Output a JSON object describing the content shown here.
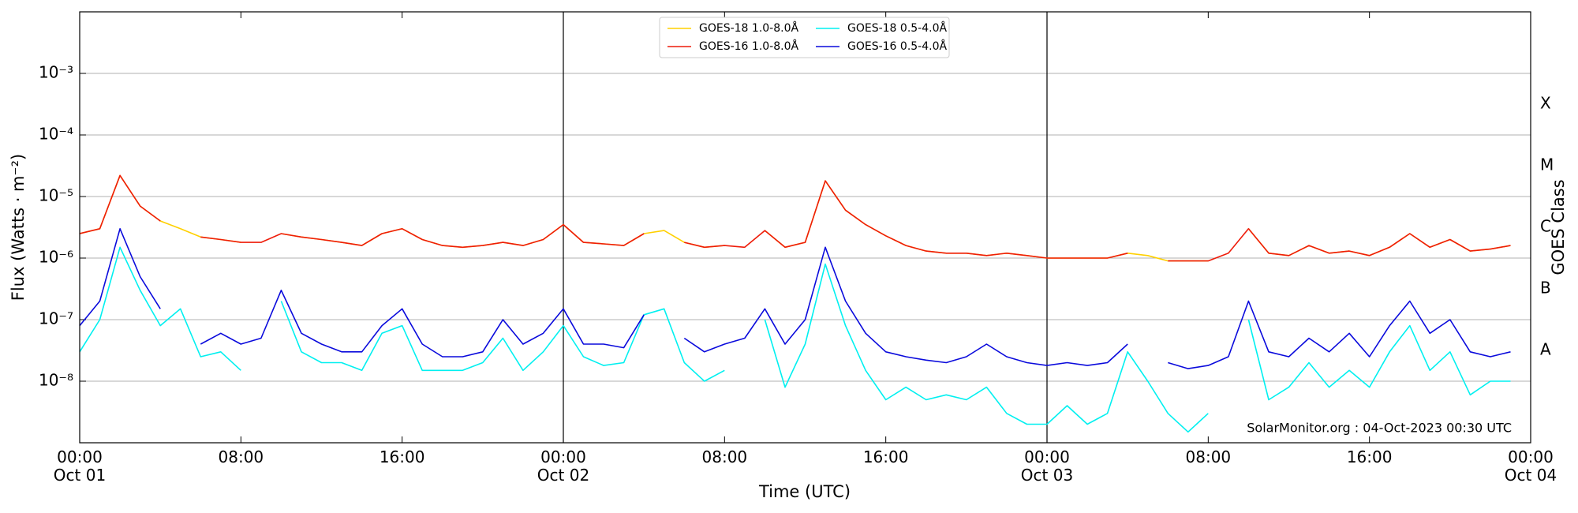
{
  "chart_data": {
    "type": "line",
    "xlabel": "Time (UTC)",
    "ylabel": "Flux (Watts · m⁻²)",
    "y2label": "GOES Class",
    "annotation": "SolarMonitor.org : 04-Oct-2023 00:30 UTC",
    "log_y": true,
    "grid": true,
    "legend": "upper center",
    "xlim": [
      0,
      72
    ],
    "xticks": [
      {
        "value": 0,
        "label": "00:00\nOct 01"
      },
      {
        "value": 8,
        "label": "08:00"
      },
      {
        "value": 16,
        "label": "16:00"
      },
      {
        "value": 24,
        "label": "00:00\nOct 02"
      },
      {
        "value": 32,
        "label": "08:00"
      },
      {
        "value": 40,
        "label": "16:00"
      },
      {
        "value": 48,
        "label": "00:00\nOct 03"
      },
      {
        "value": 56,
        "label": "08:00"
      },
      {
        "value": 64,
        "label": "16:00"
      },
      {
        "value": 72,
        "label": "00:00\nOct 04"
      }
    ],
    "vlines": [
      24,
      48
    ],
    "ylim": [
      1e-09,
      0.01
    ],
    "yticks": [
      {
        "value": 1e-08,
        "label": "10⁻⁸"
      },
      {
        "value": 1e-07,
        "label": "10⁻⁷"
      },
      {
        "value": 1e-06,
        "label": "10⁻⁶"
      },
      {
        "value": 1e-05,
        "label": "10⁻⁵"
      },
      {
        "value": 0.0001,
        "label": "10⁻⁴"
      },
      {
        "value": 0.001,
        "label": "10⁻³"
      }
    ],
    "y2lim": [
      1e-09,
      0.01
    ],
    "y2ticks": [
      {
        "value": 3.16e-08,
        "label": "A"
      },
      {
        "value": 3.16e-07,
        "label": "B"
      },
      {
        "value": 3.16e-06,
        "label": "C"
      },
      {
        "value": 3.16e-05,
        "label": "M"
      },
      {
        "value": 0.000316,
        "label": "X"
      }
    ],
    "x": [
      0,
      1,
      2,
      3,
      4,
      5,
      6,
      7,
      8,
      9,
      10,
      11,
      12,
      13,
      14,
      15,
      16,
      17,
      18,
      19,
      20,
      21,
      22,
      23,
      24,
      25,
      26,
      27,
      28,
      29,
      30,
      31,
      32,
      33,
      34,
      35,
      36,
      37,
      38,
      39,
      40,
      41,
      42,
      43,
      44,
      45,
      46,
      47,
      48,
      49,
      50,
      51,
      52,
      53,
      54,
      55,
      56,
      57,
      58,
      59,
      60,
      61,
      62,
      63,
      64,
      65,
      66,
      67,
      68,
      69,
      70,
      71,
      72
    ],
    "series": [
      {
        "name": "GOES-18 1.0-8.0Å",
        "color": "#ffd000",
        "values": [
          2.5e-06,
          3e-06,
          2.2e-05,
          7e-06,
          4e-06,
          3e-06,
          2.2e-06,
          2e-06,
          1.8e-06,
          null,
          2.5e-06,
          2.2e-06,
          2e-06,
          1.8e-06,
          1.6e-06,
          2.5e-06,
          3e-06,
          2e-06,
          1.6e-06,
          1.5e-06,
          1.6e-06,
          1.8e-06,
          1.6e-06,
          2e-06,
          3.5e-06,
          1.8e-06,
          1.7e-06,
          1.6e-06,
          2.5e-06,
          2.8e-06,
          1.8e-06,
          1.5e-06,
          1.6e-06,
          null,
          2.8e-06,
          1.5e-06,
          1.8e-06,
          1.8e-05,
          6e-06,
          3.5e-06,
          2.3e-06,
          1.6e-06,
          1.3e-06,
          1.2e-06,
          1.2e-06,
          1.1e-06,
          1.2e-06,
          1.1e-06,
          1e-06,
          1e-06,
          1e-06,
          1e-06,
          1.2e-06,
          1.1e-06,
          9e-07,
          9e-07,
          9e-07,
          null,
          3e-06,
          1.2e-06,
          1.1e-06,
          1.6e-06,
          1.2e-06,
          1.3e-06,
          1.1e-06,
          1.5e-06,
          2.5e-06,
          1.5e-06,
          2e-06,
          1.3e-06,
          1.4e-06,
          1.6e-06,
          null
        ]
      },
      {
        "name": "GOES-16 1.0-8.0Å",
        "color": "#ee1c0a",
        "values": [
          2.5e-06,
          3e-06,
          2.2e-05,
          7e-06,
          4e-06,
          null,
          2.2e-06,
          2e-06,
          1.8e-06,
          1.8e-06,
          2.5e-06,
          2.2e-06,
          2e-06,
          1.8e-06,
          1.6e-06,
          2.5e-06,
          3e-06,
          2e-06,
          1.6e-06,
          1.5e-06,
          1.6e-06,
          1.8e-06,
          1.6e-06,
          2e-06,
          3.5e-06,
          1.8e-06,
          1.7e-06,
          1.6e-06,
          2.5e-06,
          null,
          1.8e-06,
          1.5e-06,
          1.6e-06,
          1.5e-06,
          2.8e-06,
          1.5e-06,
          1.8e-06,
          1.8e-05,
          6e-06,
          3.5e-06,
          2.3e-06,
          1.6e-06,
          1.3e-06,
          1.2e-06,
          1.2e-06,
          1.1e-06,
          1.2e-06,
          1.1e-06,
          1e-06,
          1e-06,
          1e-06,
          1e-06,
          1.2e-06,
          null,
          9e-07,
          9e-07,
          9e-07,
          1.2e-06,
          3e-06,
          1.2e-06,
          1.1e-06,
          1.6e-06,
          1.2e-06,
          1.3e-06,
          1.1e-06,
          1.5e-06,
          2.5e-06,
          1.5e-06,
          2e-06,
          1.3e-06,
          1.4e-06,
          1.6e-06,
          null
        ]
      },
      {
        "name": "GOES-18 0.5-4.0Å",
        "color": "#00f0f0",
        "values": [
          3e-08,
          1e-07,
          1.5e-06,
          3e-07,
          8e-08,
          1.5e-07,
          2.5e-08,
          3e-08,
          1.5e-08,
          null,
          2e-07,
          3e-08,
          2e-08,
          2e-08,
          1.5e-08,
          6e-08,
          8e-08,
          1.5e-08,
          1.5e-08,
          1.5e-08,
          2e-08,
          5e-08,
          1.5e-08,
          3e-08,
          8e-08,
          2.5e-08,
          1.8e-08,
          2e-08,
          1.2e-07,
          1.5e-07,
          2e-08,
          1e-08,
          1.5e-08,
          null,
          1e-07,
          8e-09,
          4e-08,
          8e-07,
          8e-08,
          1.5e-08,
          5e-09,
          8e-09,
          5e-09,
          6e-09,
          5e-09,
          8e-09,
          3e-09,
          2e-09,
          2e-09,
          4e-09,
          2e-09,
          3e-09,
          3e-08,
          1e-08,
          3e-09,
          1.5e-09,
          3e-09,
          null,
          1e-07,
          5e-09,
          8e-09,
          2e-08,
          8e-09,
          1.5e-08,
          8e-09,
          3e-08,
          8e-08,
          1.5e-08,
          3e-08,
          6e-09,
          1e-08,
          1e-08,
          null
        ]
      },
      {
        "name": "GOES-16 0.5-4.0Å",
        "color": "#0a0adc",
        "values": [
          8e-08,
          2e-07,
          3e-06,
          5e-07,
          1.5e-07,
          null,
          4e-08,
          6e-08,
          4e-08,
          5e-08,
          3e-07,
          6e-08,
          4e-08,
          3e-08,
          3e-08,
          8e-08,
          1.5e-07,
          4e-08,
          2.5e-08,
          2.5e-08,
          3e-08,
          1e-07,
          4e-08,
          6e-08,
          1.5e-07,
          4e-08,
          4e-08,
          3.5e-08,
          1.2e-07,
          null,
          5e-08,
          3e-08,
          4e-08,
          5e-08,
          1.5e-07,
          4e-08,
          1e-07,
          1.5e-06,
          2e-07,
          6e-08,
          3e-08,
          2.5e-08,
          2.2e-08,
          2e-08,
          2.5e-08,
          4e-08,
          2.5e-08,
          2e-08,
          1.8e-08,
          2e-08,
          1.8e-08,
          2e-08,
          4e-08,
          null,
          2e-08,
          1.6e-08,
          1.8e-08,
          2.5e-08,
          2e-07,
          3e-08,
          2.5e-08,
          5e-08,
          3e-08,
          6e-08,
          2.5e-08,
          8e-08,
          2e-07,
          6e-08,
          1e-07,
          3e-08,
          2.5e-08,
          3e-08,
          null
        ]
      }
    ]
  }
}
